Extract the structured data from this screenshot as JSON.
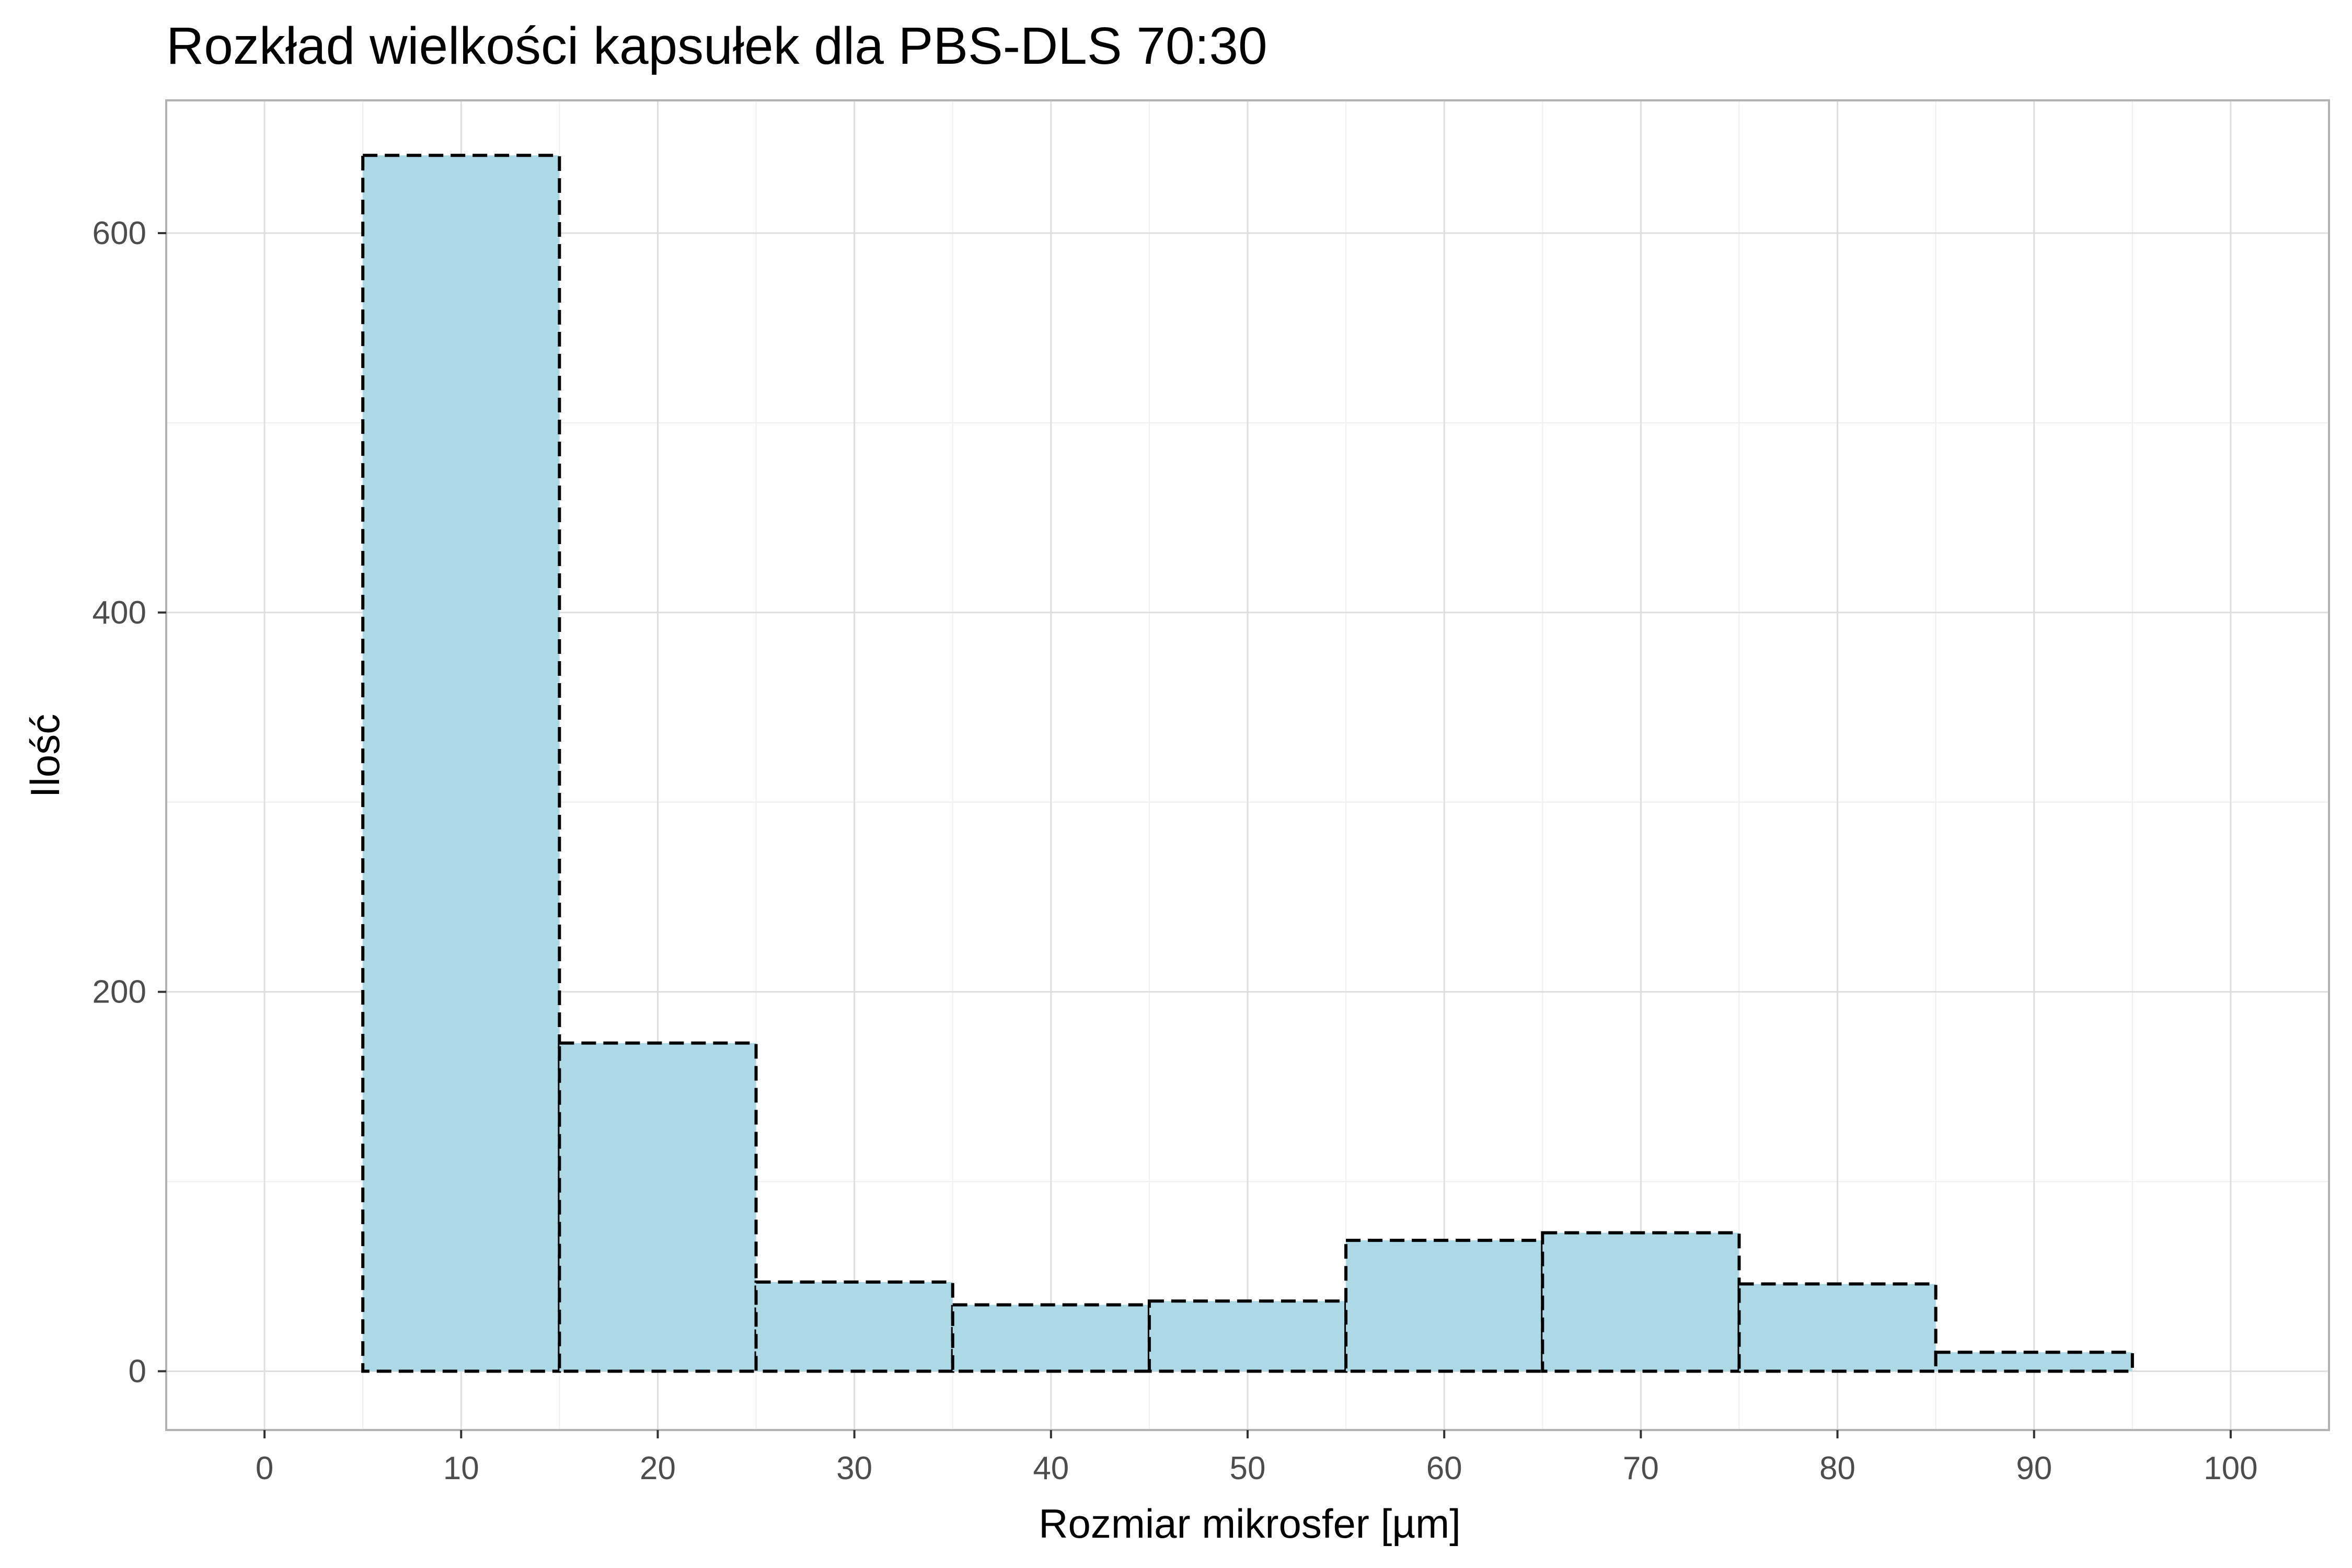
{
  "chart_data": {
    "type": "bar",
    "title": "Rozkład wielkości kapsułek dla PBS-DLS 70:30",
    "xlabel": "Rozmiar mikrosfer [µm]",
    "ylabel": "Ilość",
    "xlim": [
      -5,
      105
    ],
    "ylim": [
      -31,
      670
    ],
    "xticks": [
      0,
      10,
      20,
      30,
      40,
      50,
      60,
      70,
      80,
      90,
      100
    ],
    "yticks": [
      0,
      200,
      400,
      600
    ],
    "bins": [
      {
        "from": 5,
        "to": 15,
        "value": 641
      },
      {
        "from": 15,
        "to": 25,
        "value": 173
      },
      {
        "from": 25,
        "to": 35,
        "value": 47
      },
      {
        "from": 35,
        "to": 45,
        "value": 35
      },
      {
        "from": 45,
        "to": 55,
        "value": 37
      },
      {
        "from": 55,
        "to": 65,
        "value": 69
      },
      {
        "from": 65,
        "to": 75,
        "value": 73
      },
      {
        "from": 75,
        "to": 85,
        "value": 46
      },
      {
        "from": 85,
        "to": 95,
        "value": 10
      }
    ],
    "grid": true,
    "colors": {
      "bar_fill": "#add8e6",
      "bar_outline": "#000000",
      "grid_major": "#dedede",
      "grid_minor": "#efefef",
      "panel_border": "#b3b3b3"
    }
  }
}
